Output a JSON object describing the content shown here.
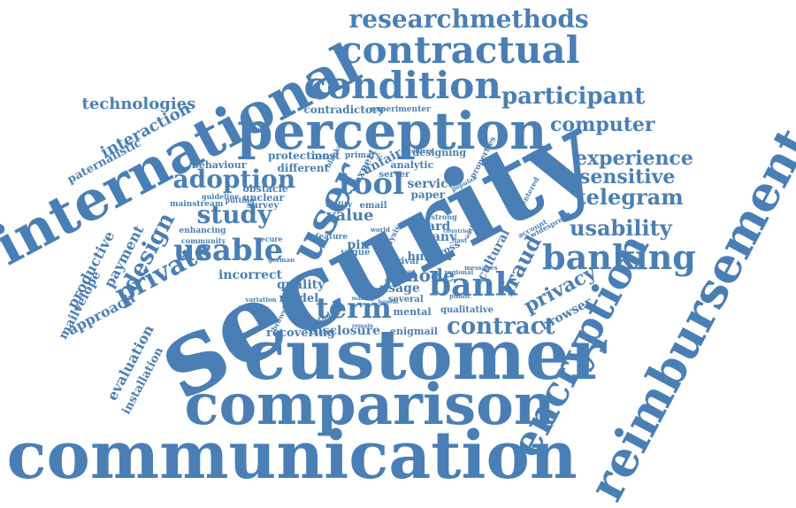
{
  "word_color": "#4a7fb5",
  "words": [
    {
      "text": "security",
      "rot": -28
    },
    {
      "text": "customer",
      "rot": 0
    },
    {
      "text": "communication",
      "rot": 0
    },
    {
      "text": "comparison",
      "rot": 0
    },
    {
      "text": "international",
      "rot": -28
    },
    {
      "text": "perception",
      "rot": 0
    },
    {
      "text": "reimbursement",
      "rot": -62
    },
    {
      "text": "encryption",
      "rot": -62
    },
    {
      "text": "user",
      "rot": -62
    },
    {
      "text": "contractual",
      "rot": 0
    },
    {
      "text": "condition",
      "rot": 0
    },
    {
      "text": "banking",
      "rot": 0
    },
    {
      "text": "bank",
      "rot": 0
    },
    {
      "text": "usable",
      "rot": 0
    },
    {
      "text": "private",
      "rot": -28
    },
    {
      "text": "term",
      "rot": 0
    },
    {
      "text": "tool",
      "rot": 0
    },
    {
      "text": "adoption",
      "rot": 0
    },
    {
      "text": "study",
      "rot": 0
    },
    {
      "text": "design",
      "rot": -62
    },
    {
      "text": "researchmethods",
      "rot": 0
    },
    {
      "text": "participant",
      "rot": 0
    },
    {
      "text": "usability",
      "rot": 0
    },
    {
      "text": "telegram",
      "rot": 0
    },
    {
      "text": "sensitive",
      "rot": 0
    },
    {
      "text": "experience",
      "rot": 0
    },
    {
      "text": "contract",
      "rot": 0
    },
    {
      "text": "privacy",
      "rot": -28
    },
    {
      "text": "fraud",
      "rot": -62
    },
    {
      "text": "computer",
      "rot": 0
    },
    {
      "text": "technologies",
      "rot": 0
    },
    {
      "text": "interaction",
      "rot": -28
    },
    {
      "text": "productive",
      "rot": -62
    },
    {
      "text": "payment",
      "rot": -62
    },
    {
      "text": "approach",
      "rot": -28
    },
    {
      "text": "mailvelope",
      "rot": -62
    },
    {
      "text": "evaluation",
      "rot": -62
    },
    {
      "text": "installation",
      "rot": -62
    },
    {
      "text": "paternalistic",
      "rot": -28
    },
    {
      "text": "mode",
      "rot": 0
    },
    {
      "text": "value",
      "rot": 0
    },
    {
      "text": "browser",
      "rot": -28
    },
    {
      "text": "incorrect",
      "rot": 0
    },
    {
      "text": "quality",
      "rot": 0
    },
    {
      "text": "model",
      "rot": 0
    },
    {
      "text": "disclosure",
      "rot": 0
    },
    {
      "text": "recovering",
      "rot": 0
    },
    {
      "text": "behaviour",
      "rot": 0
    },
    {
      "text": "protection",
      "rot": 0
    },
    {
      "text": "different",
      "rot": 0
    },
    {
      "text": "obstacle",
      "rot": 0
    },
    {
      "text": "unclear",
      "rot": 0
    },
    {
      "text": "survey",
      "rot": 0
    },
    {
      "text": "unfair",
      "rot": -28
    },
    {
      "text": "expert",
      "rot": -62
    },
    {
      "text": "analytic",
      "rot": 0
    },
    {
      "text": "designing",
      "rot": 0
    },
    {
      "text": "service",
      "rot": 0
    },
    {
      "text": "paper",
      "rot": 0
    },
    {
      "text": "card",
      "rot": 0
    },
    {
      "text": "many",
      "rot": 0
    },
    {
      "text": "human",
      "rot": 0
    },
    {
      "text": "cultural",
      "rot": -62
    },
    {
      "text": "enigmail",
      "rot": 0
    },
    {
      "text": "qualitative",
      "rot": 0
    },
    {
      "text": "mental",
      "rot": 0
    },
    {
      "text": "usage",
      "rot": 0
    },
    {
      "text": "several",
      "rot": 0
    },
    {
      "text": "pin",
      "rot": 0
    },
    {
      "text": "vague",
      "rot": 0
    },
    {
      "text": "email",
      "rot": 0
    },
    {
      "text": "utility",
      "rot": 0
    },
    {
      "text": "most",
      "rot": 0
    },
    {
      "text": "contradictory",
      "rot": 0
    },
    {
      "text": "experimenter",
      "rot": 0
    },
    {
      "text": "primary",
      "rot": 0
    },
    {
      "text": "blanket",
      "rot": -62
    },
    {
      "text": "server",
      "rot": 0
    },
    {
      "text": "properties",
      "rot": -62
    },
    {
      "text": "centered",
      "rot": -62
    },
    {
      "text": "mainstream",
      "rot": 0
    },
    {
      "text": "guideline",
      "rot": 0
    },
    {
      "text": "putting",
      "rot": 0
    },
    {
      "text": "enhancing",
      "rot": 0
    },
    {
      "text": "community",
      "rot": 0
    },
    {
      "text": "secure",
      "rot": 0
    },
    {
      "text": "feature",
      "rot": 0
    },
    {
      "text": "arrival",
      "rot": 0
    },
    {
      "text": "cross",
      "rot": -28
    },
    {
      "text": "regional",
      "rot": 0
    },
    {
      "text": "messages",
      "rot": 0
    },
    {
      "text": "account",
      "rot": -28
    },
    {
      "text": "widespread",
      "rot": -28
    },
    {
      "text": "browsing",
      "rot": -62
    },
    {
      "text": "studies",
      "rot": -28
    },
    {
      "text": "world",
      "rot": 0
    },
    {
      "text": "analysis",
      "rot": -62
    },
    {
      "text": "strong",
      "rot": 0
    },
    {
      "text": "centred",
      "rot": 0
    },
    {
      "text": "authentic",
      "rot": -62
    },
    {
      "text": "simple",
      "rot": 0
    },
    {
      "text": "german",
      "rot": 0
    },
    {
      "text": "heuristic",
      "rot": 0
    },
    {
      "text": "variation",
      "rot": 0
    },
    {
      "text": "remain",
      "rot": 0
    },
    {
      "text": "making",
      "rot": 0
    },
    {
      "text": "benefit",
      "rot": 0
    },
    {
      "text": "fast",
      "rot": 0
    },
    {
      "text": "conduct",
      "rot": 0
    },
    {
      "text": "public",
      "rot": 0
    },
    {
      "text": "countries",
      "rot": 0
    },
    {
      "text": "popular",
      "rot": -28
    }
  ]
}
